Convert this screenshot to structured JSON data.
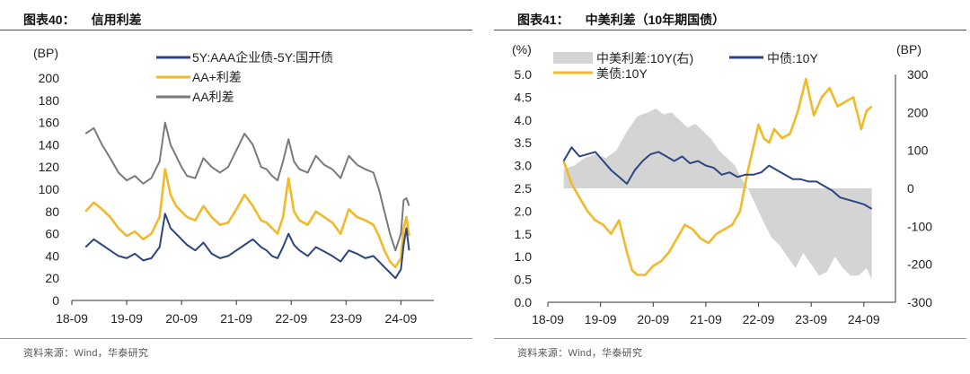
{
  "left": {
    "figure_title": "图表40：",
    "figure_subtitle": "信用利差",
    "source": "资料来源：Wind，华泰研究"
  },
  "right": {
    "figure_title": "图表41：",
    "figure_subtitle": "中美利差（10年期国债）",
    "source": "资料来源：Wind，华泰研究"
  },
  "chart_data": [
    {
      "type": "line",
      "title": "信用利差",
      "ylabel": "(BP)",
      "ylim": [
        0,
        200
      ],
      "yticks": [
        0,
        20,
        40,
        60,
        80,
        100,
        120,
        140,
        160,
        180,
        200
      ],
      "xlim": [
        0,
        6.6
      ],
      "xticks": [
        "18-09",
        "19-09",
        "20-09",
        "21-09",
        "22-09",
        "23-09",
        "24-09"
      ],
      "legend_position": "top-center",
      "colors": {
        "spread_5y": "#2c4580",
        "aa_plus": "#f2b928",
        "aa": "#7a7a7a"
      },
      "series": [
        {
          "key": "spread_5y",
          "name": "5Y:AAA企业债-5Y:国开债",
          "x": [
            0.25,
            0.4,
            0.55,
            0.7,
            0.85,
            1.0,
            1.15,
            1.3,
            1.45,
            1.6,
            1.7,
            1.8,
            1.9,
            2.0,
            2.1,
            2.25,
            2.4,
            2.55,
            2.7,
            2.85,
            3.0,
            3.15,
            3.3,
            3.45,
            3.55,
            3.65,
            3.75,
            3.85,
            3.95,
            4.05,
            4.15,
            4.3,
            4.45,
            4.6,
            4.75,
            4.9,
            5.05,
            5.2,
            5.35,
            5.5,
            5.6,
            5.7,
            5.8,
            5.9,
            6.0,
            6.05,
            6.1,
            6.15
          ],
          "values": [
            48,
            55,
            50,
            45,
            40,
            38,
            42,
            36,
            38,
            48,
            78,
            65,
            60,
            55,
            50,
            45,
            52,
            42,
            38,
            40,
            45,
            50,
            55,
            48,
            45,
            40,
            38,
            48,
            60,
            50,
            45,
            40,
            48,
            44,
            40,
            35,
            45,
            42,
            38,
            40,
            35,
            30,
            25,
            20,
            28,
            50,
            65,
            45
          ]
        },
        {
          "key": "aa_plus",
          "name": "AA+利差",
          "x": [
            0.25,
            0.4,
            0.55,
            0.7,
            0.85,
            1.0,
            1.15,
            1.3,
            1.45,
            1.6,
            1.7,
            1.8,
            1.9,
            2.0,
            2.1,
            2.25,
            2.4,
            2.55,
            2.7,
            2.85,
            3.0,
            3.15,
            3.3,
            3.45,
            3.55,
            3.65,
            3.75,
            3.85,
            3.95,
            4.05,
            4.15,
            4.3,
            4.45,
            4.6,
            4.75,
            4.9,
            5.05,
            5.2,
            5.35,
            5.5,
            5.6,
            5.7,
            5.8,
            5.9,
            6.0,
            6.05,
            6.1,
            6.15
          ],
          "values": [
            80,
            88,
            82,
            75,
            65,
            58,
            62,
            55,
            60,
            75,
            118,
            95,
            85,
            80,
            75,
            72,
            85,
            75,
            68,
            70,
            82,
            95,
            85,
            72,
            70,
            65,
            60,
            75,
            110,
            80,
            72,
            68,
            80,
            75,
            70,
            60,
            82,
            75,
            72,
            68,
            58,
            45,
            35,
            30,
            38,
            65,
            75,
            58
          ]
        },
        {
          "key": "aa",
          "name": "AA利差",
          "x": [
            0.25,
            0.4,
            0.55,
            0.7,
            0.85,
            1.0,
            1.15,
            1.3,
            1.45,
            1.6,
            1.7,
            1.8,
            1.9,
            2.0,
            2.1,
            2.25,
            2.4,
            2.55,
            2.7,
            2.85,
            3.0,
            3.15,
            3.3,
            3.45,
            3.55,
            3.65,
            3.75,
            3.85,
            3.95,
            4.05,
            4.15,
            4.3,
            4.45,
            4.6,
            4.75,
            4.9,
            5.05,
            5.2,
            5.35,
            5.5,
            5.6,
            5.7,
            5.8,
            5.9,
            6.0,
            6.05,
            6.1,
            6.15
          ],
          "values": [
            150,
            155,
            140,
            128,
            115,
            108,
            112,
            105,
            110,
            125,
            160,
            140,
            130,
            120,
            112,
            110,
            128,
            120,
            115,
            120,
            135,
            150,
            140,
            120,
            118,
            112,
            108,
            125,
            145,
            125,
            118,
            115,
            130,
            122,
            118,
            110,
            130,
            122,
            118,
            115,
            100,
            80,
            60,
            45,
            60,
            90,
            92,
            85
          ]
        }
      ]
    },
    {
      "type": "line",
      "title": "中美利差（10年期国债）",
      "ylabel": "(%)",
      "ylabel_right": "(BP)",
      "ylim": [
        0.0,
        5.0
      ],
      "yticks": [
        "0.0",
        "0.5",
        "1.0",
        "1.5",
        "2.0",
        "2.5",
        "3.0",
        "3.5",
        "4.0",
        "4.5",
        "5.0"
      ],
      "ylim_right": [
        -300,
        300
      ],
      "yticks_right": [
        -300,
        -200,
        -100,
        0,
        100,
        200,
        300
      ],
      "xlim": [
        0,
        6.6
      ],
      "xticks": [
        "18-09",
        "19-09",
        "20-09",
        "21-09",
        "22-09",
        "23-09",
        "24-09"
      ],
      "legend_position": "top",
      "colors": {
        "spread_10y": "#d4d4d4",
        "cn_10y": "#2c4580",
        "us_10y": "#f2b928"
      },
      "series": [
        {
          "key": "spread_10y",
          "name": "中美利差:10Y(右)",
          "kind": "area",
          "axis": "right",
          "x": [
            0.3,
            0.5,
            0.7,
            0.9,
            1.1,
            1.3,
            1.5,
            1.7,
            1.9,
            2.05,
            2.2,
            2.35,
            2.5,
            2.65,
            2.8,
            2.95,
            3.1,
            3.25,
            3.4,
            3.55,
            3.7,
            3.8,
            3.9,
            4.0,
            4.1,
            4.25,
            4.4,
            4.55,
            4.7,
            4.85,
            5.0,
            5.15,
            5.3,
            5.45,
            5.6,
            5.75,
            5.9,
            6.05,
            6.15
          ],
          "values": [
            50,
            60,
            80,
            90,
            80,
            100,
            150,
            190,
            200,
            210,
            195,
            200,
            180,
            160,
            170,
            150,
            130,
            100,
            80,
            60,
            20,
            0,
            -30,
            -60,
            -90,
            -130,
            -150,
            -180,
            -210,
            -170,
            -200,
            -230,
            -220,
            -180,
            -210,
            -230,
            -230,
            -210,
            -240
          ]
        },
        {
          "key": "cn_10y",
          "name": "中债:10Y",
          "axis": "left",
          "x": [
            0.3,
            0.45,
            0.6,
            0.75,
            0.9,
            1.05,
            1.2,
            1.35,
            1.5,
            1.65,
            1.8,
            1.95,
            2.1,
            2.25,
            2.4,
            2.55,
            2.7,
            2.85,
            3.0,
            3.15,
            3.3,
            3.45,
            3.6,
            3.75,
            3.9,
            4.05,
            4.2,
            4.35,
            4.5,
            4.65,
            4.8,
            4.95,
            5.1,
            5.25,
            5.4,
            5.55,
            5.7,
            5.85,
            6.0,
            6.15
          ],
          "values": [
            3.1,
            3.4,
            3.2,
            3.25,
            3.3,
            3.1,
            2.9,
            2.75,
            2.6,
            2.9,
            3.1,
            3.25,
            3.3,
            3.2,
            3.1,
            3.2,
            3.05,
            3.1,
            3.0,
            2.95,
            2.8,
            2.85,
            2.75,
            2.8,
            2.8,
            2.85,
            3.0,
            2.9,
            2.8,
            2.7,
            2.7,
            2.65,
            2.65,
            2.55,
            2.45,
            2.3,
            2.25,
            2.2,
            2.15,
            2.05
          ]
        },
        {
          "key": "us_10y",
          "name": "美债:10Y",
          "axis": "left",
          "x": [
            0.3,
            0.45,
            0.6,
            0.75,
            0.9,
            1.05,
            1.2,
            1.35,
            1.5,
            1.6,
            1.7,
            1.85,
            2.0,
            2.15,
            2.3,
            2.45,
            2.6,
            2.75,
            2.9,
            3.05,
            3.2,
            3.35,
            3.5,
            3.65,
            3.8,
            3.9,
            4.0,
            4.1,
            4.2,
            4.3,
            4.45,
            4.6,
            4.75,
            4.9,
            5.05,
            5.2,
            5.35,
            5.5,
            5.65,
            5.8,
            5.95,
            6.05,
            6.15
          ],
          "values": [
            3.1,
            2.6,
            2.3,
            2.0,
            1.8,
            1.7,
            1.5,
            1.8,
            1.1,
            0.7,
            0.6,
            0.6,
            0.8,
            0.9,
            1.1,
            1.4,
            1.7,
            1.6,
            1.4,
            1.3,
            1.5,
            1.6,
            1.7,
            2.0,
            2.9,
            3.4,
            3.9,
            3.6,
            3.5,
            3.8,
            3.6,
            3.7,
            4.2,
            4.9,
            4.1,
            4.5,
            4.7,
            4.3,
            4.4,
            4.5,
            3.8,
            4.2,
            4.3
          ]
        }
      ]
    }
  ]
}
